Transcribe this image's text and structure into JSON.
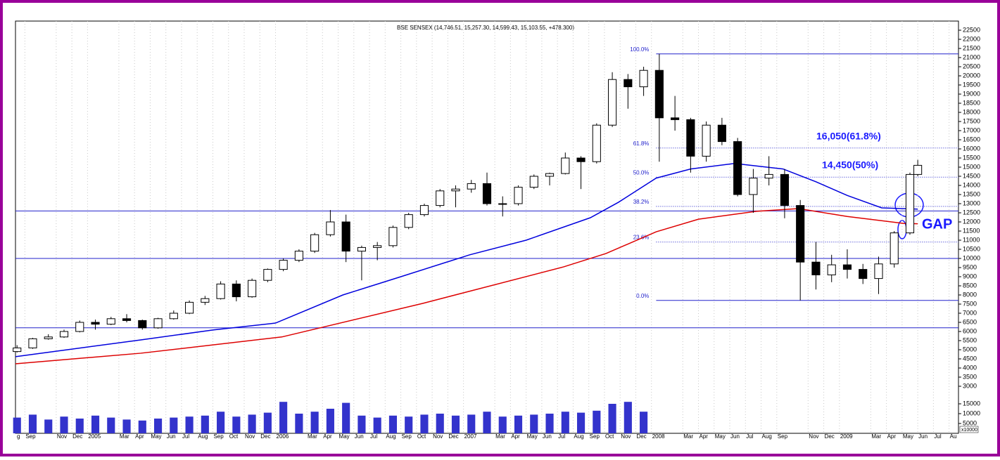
{
  "chart_data": {
    "type": "candlestick",
    "title": "BSE SENSEX (14,746.51, 15,257.30, 14,599.43, 15,103.55, +478.300)",
    "x": [
      7.5,
      8.5,
      9.5,
      10.5,
      11.5,
      12.5,
      13.5,
      14.5,
      15.5,
      16.5,
      17.5,
      18.5,
      19.5,
      20.5,
      21.5,
      22.5,
      23.5,
      24.5,
      25.5,
      26.5,
      27.5,
      28.5,
      29.5,
      30.5,
      31.5,
      32.5,
      33.5,
      34.5,
      35.5,
      36.5,
      37.5,
      38.5,
      39.5,
      40.5,
      41.5,
      42.5,
      43.5,
      44.5,
      45.5,
      46.5,
      47.5,
      48.5,
      49.5,
      50.5,
      51.5,
      52.5,
      53.5,
      54.5,
      55.5,
      56.5,
      57.5,
      58.5,
      59.5,
      60.5,
      61.5,
      62.5,
      63.5,
      64.5,
      65.0
    ],
    "open": [
      4900,
      5100,
      5600,
      5700,
      6000,
      6500,
      6400,
      6700,
      6600,
      6200,
      6700,
      7000,
      7600,
      7800,
      8600,
      7900,
      8800,
      9400,
      9900,
      10400,
      11300,
      12000,
      10400,
      10600,
      10700,
      11700,
      12400,
      12900,
      13700,
      13800,
      14100,
      13000,
      13000,
      13900,
      14500,
      14650,
      15500,
      15300,
      17300,
      19800,
      19400,
      20300,
      17700,
      17600,
      15600,
      17300,
      16400,
      13500,
      14400,
      14600,
      12900,
      9800,
      9100,
      9650,
      9400,
      8900,
      9700,
      11400,
      14600
    ],
    "high": [
      5250,
      5650,
      5850,
      6100,
      6600,
      6650,
      6800,
      6950,
      6650,
      6750,
      7150,
      7700,
      7950,
      8750,
      8800,
      8900,
      9450,
      10000,
      10500,
      11400,
      12650,
      12400,
      10700,
      10900,
      11800,
      12500,
      13000,
      13800,
      14000,
      14300,
      14700,
      13400,
      14000,
      14600,
      14700,
      15800,
      15600,
      17400,
      20200,
      20100,
      20500,
      21200,
      18900,
      17700,
      17500,
      17700,
      16600,
      14900,
      15600,
      14900,
      13200,
      10900,
      10200,
      10500,
      9700,
      10100,
      11500,
      14700,
      15400
    ],
    "low": [
      4850,
      5050,
      5550,
      5650,
      5950,
      6100,
      6350,
      6500,
      6100,
      6150,
      6650,
      6950,
      7450,
      7750,
      7650,
      7850,
      8700,
      9300,
      9800,
      10300,
      11200,
      9800,
      8800,
      9900,
      10600,
      11600,
      12300,
      12800,
      12800,
      13600,
      12900,
      12300,
      12900,
      13800,
      14000,
      14600,
      13800,
      15200,
      17200,
      18200,
      18900,
      15300,
      17000,
      14700,
      15300,
      16200,
      13400,
      12500,
      14000,
      12200,
      7700,
      8300,
      8700,
      8900,
      8600,
      8050,
      9500,
      11300,
      14500
    ],
    "close": [
      5100,
      5600,
      5700,
      6000,
      6500,
      6400,
      6700,
      6600,
      6200,
      6700,
      7000,
      7600,
      7800,
      8600,
      7900,
      8800,
      9400,
      9900,
      10400,
      11300,
      12000,
      10400,
      10600,
      10700,
      11700,
      12400,
      12900,
      13700,
      13800,
      14100,
      13000,
      13000,
      13900,
      14500,
      14650,
      15500,
      15300,
      17300,
      19800,
      19400,
      20300,
      17700,
      17600,
      15600,
      17300,
      16400,
      13500,
      14400,
      14600,
      12900,
      9800,
      9100,
      9650,
      9400,
      8900,
      9700,
      11400,
      14600,
      15100
    ],
    "volume": [
      8000,
      9500,
      7000,
      8500,
      7500,
      9000,
      8000,
      7000,
      6500,
      7500,
      8000,
      8500,
      9000,
      11000,
      8500,
      9500,
      10500,
      16000,
      10000,
      11000,
      12500,
      15500,
      9000,
      8000,
      9000,
      8500,
      9500,
      10000,
      9000,
      9500,
      11000,
      8500,
      9000,
      9500,
      10000,
      11000,
      10500,
      11500,
      15000,
      16000,
      11000,
      null,
      null,
      null,
      null,
      null,
      null,
      null,
      null,
      null,
      null,
      null,
      null,
      null,
      null,
      null,
      null,
      null,
      null
    ],
    "up_color": "#ffffff",
    "down_color": "#000000",
    "candle_stroke": "#000000",
    "volume_color": "#3333cc",
    "moving_averages": [
      {
        "color": "#0000dd",
        "x": [
          7.4,
          12,
          15.4,
          20,
          24,
          28.3,
          32,
          36.4,
          40,
          44.1,
          45.9,
          48.3,
          50.5,
          53.3,
          56.4,
          58.5,
          60.5,
          62.7,
          65
        ],
        "values": [
          4620,
          5150,
          5540,
          6080,
          6460,
          8000,
          9000,
          10200,
          11000,
          12230,
          13080,
          14400,
          14900,
          15200,
          14900,
          14200,
          13450,
          12770,
          12700
        ]
      },
      {
        "color": "#dd0000",
        "x": [
          7.4,
          15.4,
          24.4,
          33.4,
          42.4,
          45.1,
          48.3,
          51,
          54.7,
          57.4,
          60.5,
          64.1,
          65
        ],
        "values": [
          4230,
          4810,
          5700,
          7540,
          9540,
          10270,
          11460,
          12150,
          12580,
          12730,
          12300,
          11920,
          11900
        ]
      }
    ],
    "xlim": [
      7.4,
      67.6
    ],
    "xticks": [
      {
        "value": 7,
        "label": "g"
      },
      {
        "value": 8,
        "label": "Sep"
      },
      {
        "value": 10,
        "label": "Nov"
      },
      {
        "value": 11,
        "label": "Dec"
      },
      {
        "value": 12,
        "label": "2005"
      },
      {
        "value": 14,
        "label": "Mar"
      },
      {
        "value": 15,
        "label": "Apr"
      },
      {
        "value": 16,
        "label": "May"
      },
      {
        "value": 17,
        "label": "Jun"
      },
      {
        "value": 18,
        "label": "Jul"
      },
      {
        "value": 19,
        "label": "Aug"
      },
      {
        "value": 20,
        "label": "Sep"
      },
      {
        "value": 21,
        "label": "Oct"
      },
      {
        "value": 22,
        "label": "Nov"
      },
      {
        "value": 23,
        "label": "Dec"
      },
      {
        "value": 24,
        "label": "2006"
      },
      {
        "value": 26,
        "label": "Mar"
      },
      {
        "value": 27,
        "label": "Apr"
      },
      {
        "value": 28,
        "label": "May"
      },
      {
        "value": 29,
        "label": "Jun"
      },
      {
        "value": 30,
        "label": "Jul"
      },
      {
        "value": 31,
        "label": "Aug"
      },
      {
        "value": 32,
        "label": "Sep"
      },
      {
        "value": 33,
        "label": "Oct"
      },
      {
        "value": 34,
        "label": "Nov"
      },
      {
        "value": 35,
        "label": "Dec"
      },
      {
        "value": 36,
        "label": "2007"
      },
      {
        "value": 38,
        "label": "Mar"
      },
      {
        "value": 39,
        "label": "Apr"
      },
      {
        "value": 40,
        "label": "May"
      },
      {
        "value": 41,
        "label": "Jun"
      },
      {
        "value": 42,
        "label": "Jul"
      },
      {
        "value": 43,
        "label": "Aug"
      },
      {
        "value": 44,
        "label": "Sep"
      },
      {
        "value": 45,
        "label": "Oct"
      },
      {
        "value": 46,
        "label": "Nov"
      },
      {
        "value": 47,
        "label": "Dec"
      },
      {
        "value": 48,
        "label": "2008"
      },
      {
        "value": 50,
        "label": "Mar"
      },
      {
        "value": 51,
        "label": "Apr"
      },
      {
        "value": 52,
        "label": "May"
      },
      {
        "value": 53,
        "label": "Jun"
      },
      {
        "value": 54,
        "label": "Jul"
      },
      {
        "value": 55,
        "label": "Aug"
      },
      {
        "value": 56,
        "label": "Sep"
      },
      {
        "value": 58,
        "label": "Nov"
      },
      {
        "value": 59,
        "label": "Dec"
      },
      {
        "value": 60,
        "label": "2009"
      },
      {
        "value": 62,
        "label": "Mar"
      },
      {
        "value": 63,
        "label": "Apr"
      },
      {
        "value": 64,
        "label": "May"
      },
      {
        "value": 65,
        "label": "Jun"
      },
      {
        "value": 66,
        "label": "Jul"
      },
      {
        "value": 67,
        "label": "Au"
      }
    ],
    "ylim": [
      3000,
      23000
    ],
    "yticks": [
      3000,
      3500,
      4000,
      4500,
      5000,
      5500,
      6000,
      6500,
      7000,
      7500,
      8000,
      8500,
      9000,
      9500,
      10000,
      10500,
      11000,
      11500,
      12000,
      12500,
      13000,
      13500,
      14000,
      14500,
      15000,
      15500,
      16000,
      16500,
      17000,
      17500,
      18000,
      18500,
      19000,
      19500,
      20000,
      20500,
      21000,
      21500,
      22000,
      22500
    ],
    "volume_ylim": [
      0,
      17500
    ],
    "volume_yticks": [
      5000,
      10000,
      15000
    ],
    "volume_unit_label": "x10000",
    "fib_start": 48.3,
    "fib_levels": [
      {
        "value": 21200,
        "label": "100.0%",
        "style": "solid"
      },
      {
        "value": 16050,
        "label": "61.8%",
        "style": "dotted"
      },
      {
        "value": 14450,
        "label": "50.0%",
        "style": "dotted"
      },
      {
        "value": 12850,
        "label": "38.2%",
        "style": "dotted"
      },
      {
        "value": 10900,
        "label": "23.6%",
        "style": "dotted"
      },
      {
        "value": 7700,
        "label": "0.0%",
        "style": "solid"
      }
    ],
    "line_color": "#2222cc",
    "support_lines": [
      12600,
      10000,
      6200
    ],
    "annotations": [
      "16,050(61.8%)",
      "14,450(50%)",
      "GAP"
    ]
  }
}
